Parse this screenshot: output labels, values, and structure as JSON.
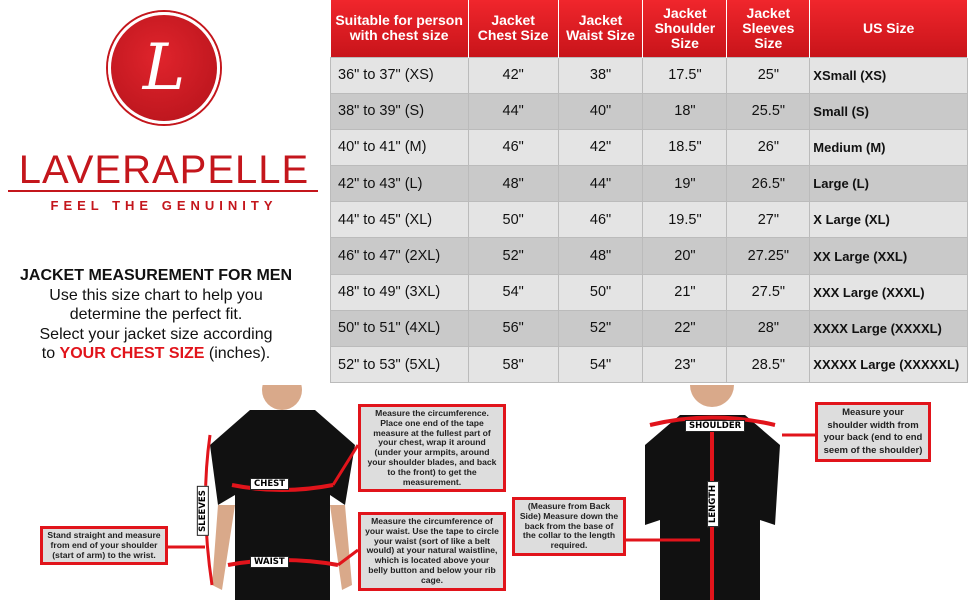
{
  "brand": {
    "logo_letter": "L",
    "name": "LAVERAPELLE",
    "tagline": "FEEL THE GENUINITY"
  },
  "intro": {
    "title": "JACKET MEASUREMENT FOR MEN",
    "line1": "Use this size chart to help you",
    "line2": "determine the perfect fit.",
    "line3": "Select your jacket size according",
    "line4_pre": "to ",
    "line4_highlight": "YOUR CHEST SIZE",
    "line4_post": " (inches)."
  },
  "table": {
    "headers": [
      "Suitable for person with chest size",
      "Jacket Chest Size",
      "Jacket Waist Size",
      "Jacket Shoulder Size",
      "Jacket Sleeves Size",
      "US Size"
    ],
    "rows": [
      [
        "36\" to 37\" (XS)",
        "42\"",
        "38\"",
        "17.5\"",
        "25\"",
        "XSmall (XS)"
      ],
      [
        "38\" to 39\" (S)",
        "44\"",
        "40\"",
        "18\"",
        "25.5\"",
        "Small (S)"
      ],
      [
        "40\" to 41\" (M)",
        "46\"",
        "42\"",
        "18.5\"",
        "26\"",
        "Medium (M)"
      ],
      [
        "42\" to 43\" (L)",
        "48\"",
        "44\"",
        "19\"",
        "26.5\"",
        "Large (L)"
      ],
      [
        "44\" to 45\" (XL)",
        "50\"",
        "46\"",
        "19.5\"",
        "27\"",
        "X Large (XL)"
      ],
      [
        "46\" to 47\" (2XL)",
        "52\"",
        "48\"",
        "20\"",
        "27.25\"",
        "XX Large (XXL)"
      ],
      [
        "48\" to 49\" (3XL)",
        "54\"",
        "50\"",
        "21\"",
        "27.5\"",
        "XXX Large (XXXL)"
      ],
      [
        "50\" to 51\" (4XL)",
        "56\"",
        "52\"",
        "22\"",
        "28\"",
        "XXXX Large (XXXXL)"
      ],
      [
        "52\" to 53\" (5XL)",
        "58\"",
        "54\"",
        "23\"",
        "28.5\"",
        "XXXXX Large (XXXXXL)"
      ]
    ]
  },
  "figure": {
    "labels": {
      "chest": "CHEST",
      "waist": "WAIST",
      "sleeves": "SLEEVES",
      "shoulder": "SHOULDER",
      "length": "LENGTH"
    },
    "notes": {
      "sleeves": "Stand straight and measure from end of your shoulder (start of arm) to the wrist.",
      "chest": "Measure the circumference. Place one end of the tape measure at the fullest part of your chest, wrap it around (under your armpits, around your shoulder blades, and back to the front) to get the measurement.",
      "waist": "Measure the circumference of your waist. Use the tape to circle your waist (sort of like a belt would) at your natural waistline, which is located above your belly button and below your rib cage.",
      "length": "(Measure from Back Side) Measure down the back from the base of the collar to the length required.",
      "shoulder": "Measure your shoulder width from your back (end to end seem of the shoulder)"
    }
  },
  "colors": {
    "accent": "#e1141b",
    "row_light": "#e4e4e4",
    "row_dark": "#c9c9c9"
  }
}
